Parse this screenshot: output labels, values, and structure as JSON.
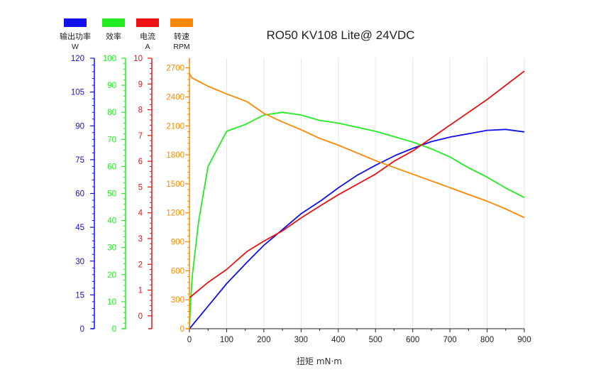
{
  "chart_data": {
    "type": "line",
    "title": "RO50 KV108 Lite@ 24VDC",
    "xlabel": "扭矩 mN·m",
    "xlim": [
      0,
      900
    ],
    "x_ticks": [
      0,
      100,
      200,
      300,
      400,
      500,
      600,
      700,
      800,
      900
    ],
    "grid": "vertical",
    "legend_position": "top-left",
    "colors": {
      "power": "#1010ee",
      "efficiency": "#22ee22",
      "current": "#ee1111",
      "speed": "#ff8800"
    },
    "axes": [
      {
        "key": "power",
        "name": "输出功率",
        "unit": "W",
        "ylim": [
          0,
          120
        ],
        "ticks": [
          0,
          15,
          30,
          45,
          60,
          75,
          90,
          105,
          120
        ]
      },
      {
        "key": "efficiency",
        "name": "效率",
        "unit": "",
        "ylim": [
          0,
          100
        ],
        "ticks": [
          0,
          10,
          20,
          30,
          40,
          50,
          60,
          70,
          80,
          90,
          100
        ]
      },
      {
        "key": "current",
        "name": "电流",
        "unit": "A",
        "ylim": [
          -0.5,
          10
        ],
        "ticks": [
          0,
          1,
          2,
          3,
          4,
          5,
          6,
          7,
          8,
          9,
          10
        ]
      },
      {
        "key": "speed",
        "name": "转速",
        "unit": "RPM",
        "ylim": [
          0,
          2800
        ],
        "ticks": [
          0,
          300,
          600,
          900,
          1200,
          1500,
          1800,
          2100,
          2400,
          2700
        ]
      }
    ],
    "series": [
      {
        "key": "power",
        "name": "输出功率",
        "x": [
          0,
          50,
          100,
          155,
          200,
          250,
          300,
          355,
          400,
          450,
          500,
          555,
          600,
          650,
          700,
          750,
          800,
          850,
          900
        ],
        "y": [
          0,
          10,
          20,
          29.5,
          37,
          44,
          51,
          57,
          62.5,
          68,
          72.5,
          77,
          80,
          83,
          85,
          86.5,
          88,
          88.4,
          87.3
        ]
      },
      {
        "key": "efficiency",
        "name": "效率",
        "x": [
          0,
          3,
          8,
          25,
          50,
          100,
          150,
          200,
          250,
          300,
          350,
          400,
          450,
          500,
          550,
          600,
          650,
          700,
          750,
          800,
          850,
          900
        ],
        "y": [
          0,
          10,
          20,
          40,
          60,
          73,
          75.5,
          79,
          80,
          79,
          77,
          76,
          74.5,
          73,
          71,
          69,
          66.5,
          63.5,
          59.5,
          56,
          52,
          48.5
        ]
      },
      {
        "key": "current",
        "name": "电流",
        "x": [
          0,
          50,
          100,
          155,
          200,
          250,
          300,
          355,
          400,
          450,
          500,
          550,
          600,
          650,
          700,
          750,
          800,
          850,
          900
        ],
        "y": [
          0.7,
          1.3,
          1.8,
          2.5,
          2.9,
          3.3,
          3.8,
          4.3,
          4.7,
          5.1,
          5.5,
          6,
          6.4,
          6.9,
          7.4,
          7.9,
          8.4,
          8.95,
          9.5
        ]
      },
      {
        "key": "speed",
        "name": "转速",
        "x": [
          0,
          3,
          6,
          10,
          25,
          50,
          100,
          155,
          200,
          250,
          300,
          350,
          400,
          450,
          500,
          550,
          600,
          650,
          700,
          750,
          800,
          850,
          900
        ],
        "y": [
          2640,
          2620,
          2600,
          2590,
          2560,
          2510,
          2430,
          2350,
          2230,
          2140,
          2060,
          1970,
          1900,
          1820,
          1740,
          1670,
          1600,
          1530,
          1460,
          1390,
          1320,
          1240,
          1150
        ]
      }
    ]
  }
}
